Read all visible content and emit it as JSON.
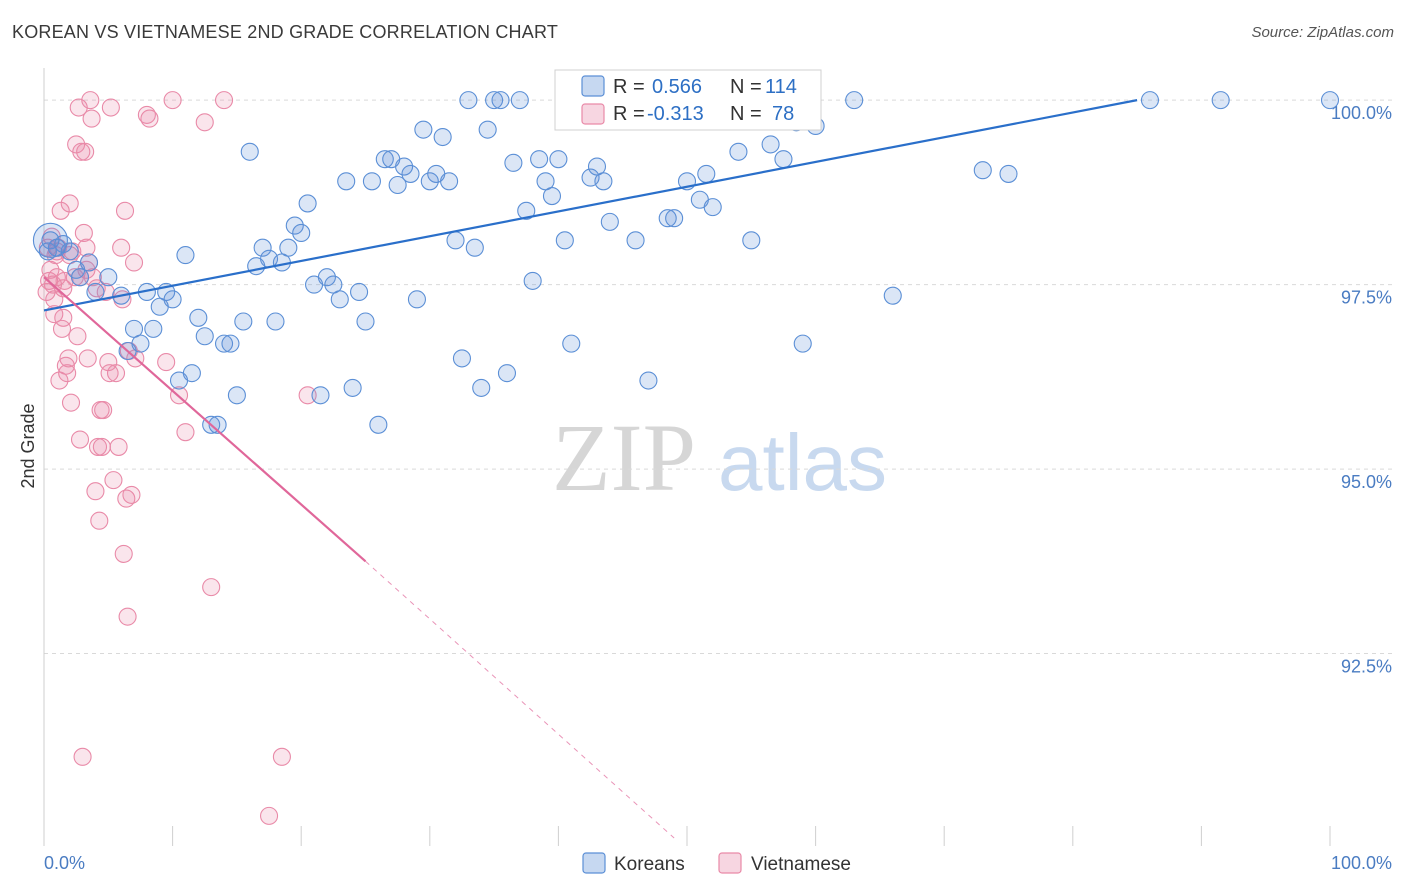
{
  "title": "KOREAN VS VIETNAMESE 2ND GRADE CORRELATION CHART",
  "source": "Source: ZipAtlas.com",
  "watermark": {
    "zip": "ZIP",
    "atlas": "atlas"
  },
  "colors": {
    "korean": "#5b8fd6",
    "korean_fill": "rgba(91,143,214,0.22)",
    "korean_line": "#2a6fca",
    "vietnamese": "#e98aa8",
    "vietnamese_fill": "rgba(233,138,168,0.22)",
    "vietnamese_line": "#e0679a",
    "tick_label": "#4a7cc2",
    "grid": "#d9d9d9"
  },
  "stats_legend": [
    {
      "series": "Koreans",
      "r_label": "R =",
      "r_value": "0.566",
      "n_label": "N =",
      "n_value": "114"
    },
    {
      "series": "Vietnamese",
      "r_label": "R =",
      "r_value": "-0.313",
      "n_label": "N =",
      "n_value": "78"
    }
  ],
  "chart_data": {
    "type": "scatter",
    "title": "KOREAN VS VIETNAMESE 2ND GRADE CORRELATION CHART",
    "xlabel": "",
    "ylabel": "2nd Grade",
    "xlim": [
      0,
      100
    ],
    "ylim": [
      90.0,
      100.3
    ],
    "x_tick_labels": [
      "0.0%",
      "100.0%"
    ],
    "y_ticks": [
      92.5,
      95.0,
      97.5,
      100.0
    ],
    "y_tick_labels": [
      "92.5%",
      "95.0%",
      "97.5%",
      "100.0%"
    ],
    "grid": true,
    "legend_position": "bottom-center",
    "legend": [
      "Koreans",
      "Vietnamese"
    ],
    "series": [
      {
        "name": "Koreans",
        "trendline": {
          "x": [
            0,
            85
          ],
          "y": [
            97.15,
            100.0
          ]
        },
        "points": [
          [
            0.5,
            98.1
          ],
          [
            1.0,
            98.0
          ],
          [
            1.5,
            98.05
          ],
          [
            2.0,
            97.95
          ],
          [
            2.5,
            97.7
          ],
          [
            2.8,
            97.6
          ],
          [
            3.5,
            97.8
          ],
          [
            4.0,
            97.4
          ],
          [
            5.0,
            97.6
          ],
          [
            6.0,
            97.35
          ],
          [
            6.5,
            96.6
          ],
          [
            7.0,
            96.9
          ],
          [
            7.5,
            96.7
          ],
          [
            8.0,
            97.4
          ],
          [
            8.5,
            96.9
          ],
          [
            9.0,
            97.2
          ],
          [
            9.5,
            97.4
          ],
          [
            10.0,
            97.3
          ],
          [
            10.5,
            96.2
          ],
          [
            11.0,
            97.9
          ],
          [
            11.5,
            96.3
          ],
          [
            12.0,
            97.05
          ],
          [
            12.5,
            96.8
          ],
          [
            13.0,
            95.6
          ],
          [
            13.5,
            95.6
          ],
          [
            14.0,
            96.7
          ],
          [
            14.5,
            96.7
          ],
          [
            15.0,
            96.0
          ],
          [
            15.5,
            97.0
          ],
          [
            16.0,
            99.3
          ],
          [
            16.5,
            97.75
          ],
          [
            17.0,
            98.0
          ],
          [
            17.5,
            97.85
          ],
          [
            18.0,
            97.0
          ],
          [
            18.5,
            97.8
          ],
          [
            19.0,
            98.0
          ],
          [
            19.5,
            98.3
          ],
          [
            20.0,
            98.2
          ],
          [
            20.5,
            98.6
          ],
          [
            21.0,
            97.5
          ],
          [
            21.5,
            96.0
          ],
          [
            22.0,
            97.6
          ],
          [
            22.5,
            97.5
          ],
          [
            23.0,
            97.3
          ],
          [
            23.5,
            98.9
          ],
          [
            24.0,
            96.1
          ],
          [
            24.5,
            97.4
          ],
          [
            25.0,
            97.0
          ],
          [
            25.5,
            98.9
          ],
          [
            26.0,
            95.6
          ],
          [
            26.5,
            99.2
          ],
          [
            27.0,
            99.2
          ],
          [
            27.5,
            98.85
          ],
          [
            28.0,
            99.1
          ],
          [
            28.5,
            99.0
          ],
          [
            29.0,
            97.3
          ],
          [
            29.5,
            99.6
          ],
          [
            30.0,
            98.9
          ],
          [
            30.5,
            99.0
          ],
          [
            31.0,
            99.5
          ],
          [
            31.5,
            98.9
          ],
          [
            32.0,
            98.1
          ],
          [
            32.5,
            96.5
          ],
          [
            33.0,
            100.0
          ],
          [
            33.5,
            98.0
          ],
          [
            34.0,
            96.1
          ],
          [
            34.5,
            99.6
          ],
          [
            35.0,
            100.0
          ],
          [
            35.5,
            100.0
          ],
          [
            36.0,
            96.3
          ],
          [
            36.5,
            99.15
          ],
          [
            37.0,
            100.0
          ],
          [
            37.5,
            98.5
          ],
          [
            38.0,
            97.55
          ],
          [
            38.5,
            99.2
          ],
          [
            39.0,
            98.9
          ],
          [
            39.5,
            98.7
          ],
          [
            40.0,
            99.2
          ],
          [
            40.5,
            98.1
          ],
          [
            41.0,
            96.7
          ],
          [
            41.5,
            100.0
          ],
          [
            42.0,
            100.0
          ],
          [
            42.5,
            98.95
          ],
          [
            43.0,
            99.1
          ],
          [
            43.5,
            98.9
          ],
          [
            44.0,
            98.35
          ],
          [
            45.0,
            100.0
          ],
          [
            46.0,
            98.1
          ],
          [
            47.0,
            96.2
          ],
          [
            48.0,
            100.0
          ],
          [
            48.5,
            98.4
          ],
          [
            49.0,
            98.4
          ],
          [
            50.0,
            98.9
          ],
          [
            51.0,
            98.65
          ],
          [
            51.5,
            99.0
          ],
          [
            52.0,
            98.55
          ],
          [
            53.0,
            100.0
          ],
          [
            54.0,
            99.3
          ],
          [
            55.0,
            98.1
          ],
          [
            55.5,
            100.0
          ],
          [
            56.5,
            99.4
          ],
          [
            57.5,
            99.2
          ],
          [
            58.0,
            100.0
          ],
          [
            58.5,
            99.7
          ],
          [
            59.0,
            96.7
          ],
          [
            60.0,
            99.65
          ],
          [
            63.0,
            100.0
          ],
          [
            66.0,
            97.35
          ],
          [
            73.0,
            99.05
          ],
          [
            75.0,
            99.0
          ],
          [
            86.0,
            100.0
          ],
          [
            91.5,
            100.0
          ],
          [
            100.0,
            100.0
          ],
          [
            0.3,
            97.95
          ]
        ]
      },
      {
        "name": "Vietnamese",
        "trendline": {
          "x": [
            0,
            25
          ],
          "y": [
            97.6,
            93.75
          ]
        },
        "trendline_extension": {
          "x": [
            25,
            49
          ],
          "y": [
            93.75,
            90.0
          ]
        },
        "points": [
          [
            0.2,
            97.4
          ],
          [
            0.3,
            98.0
          ],
          [
            0.4,
            97.55
          ],
          [
            0.5,
            97.7
          ],
          [
            0.6,
            98.15
          ],
          [
            0.7,
            97.5
          ],
          [
            0.8,
            97.1
          ],
          [
            0.9,
            97.9
          ],
          [
            1.0,
            97.6
          ],
          [
            1.1,
            98.0
          ],
          [
            1.2,
            96.2
          ],
          [
            1.3,
            98.5
          ],
          [
            1.4,
            96.9
          ],
          [
            1.5,
            97.05
          ],
          [
            1.6,
            97.55
          ],
          [
            1.7,
            96.4
          ],
          [
            1.8,
            96.3
          ],
          [
            1.9,
            96.5
          ],
          [
            2.0,
            98.6
          ],
          [
            2.1,
            95.9
          ],
          [
            2.2,
            97.95
          ],
          [
            2.4,
            97.6
          ],
          [
            2.5,
            99.4
          ],
          [
            2.6,
            96.8
          ],
          [
            2.7,
            99.9
          ],
          [
            2.8,
            95.4
          ],
          [
            2.9,
            99.3
          ],
          [
            3.0,
            91.1
          ],
          [
            3.1,
            98.2
          ],
          [
            3.2,
            99.3
          ],
          [
            3.3,
            98.0
          ],
          [
            3.4,
            96.5
          ],
          [
            3.5,
            97.8
          ],
          [
            3.6,
            100.0
          ],
          [
            3.7,
            99.75
          ],
          [
            3.8,
            97.6
          ],
          [
            4.0,
            94.7
          ],
          [
            4.2,
            95.3
          ],
          [
            4.3,
            94.3
          ],
          [
            4.4,
            95.8
          ],
          [
            4.5,
            95.3
          ],
          [
            4.6,
            95.8
          ],
          [
            4.8,
            97.4
          ],
          [
            5.0,
            96.45
          ],
          [
            5.2,
            99.9
          ],
          [
            5.4,
            94.85
          ],
          [
            5.6,
            96.3
          ],
          [
            5.8,
            95.3
          ],
          [
            6.0,
            98.0
          ],
          [
            6.2,
            93.85
          ],
          [
            6.3,
            98.5
          ],
          [
            6.4,
            94.6
          ],
          [
            6.5,
            93.0
          ],
          [
            6.6,
            96.6
          ],
          [
            6.8,
            94.65
          ],
          [
            7.0,
            97.8
          ],
          [
            8.0,
            99.8
          ],
          [
            8.2,
            99.75
          ],
          [
            9.5,
            96.45
          ],
          [
            10.0,
            100.0
          ],
          [
            10.5,
            96.0
          ],
          [
            11.0,
            95.5
          ],
          [
            12.5,
            99.7
          ],
          [
            13.0,
            93.4
          ],
          [
            14.0,
            100.0
          ],
          [
            18.5,
            91.1
          ],
          [
            20.5,
            96.0
          ],
          [
            17.5,
            90.3
          ],
          [
            1.0,
            97.95
          ],
          [
            2.0,
            97.9
          ],
          [
            3.3,
            97.7
          ],
          [
            4.1,
            97.45
          ],
          [
            5.1,
            96.3
          ],
          [
            6.1,
            97.3
          ],
          [
            7.1,
            96.5
          ],
          [
            0.8,
            97.3
          ],
          [
            1.5,
            97.45
          ],
          [
            2.8,
            97.6
          ]
        ]
      }
    ]
  },
  "legend_bottom": [
    {
      "label": "Koreans"
    },
    {
      "label": "Vietnamese"
    }
  ]
}
